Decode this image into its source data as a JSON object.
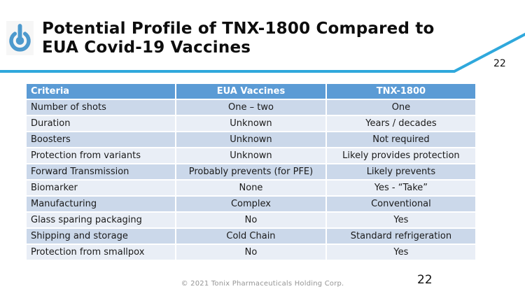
{
  "slide": {
    "title_line1": "Potential Profile of TNX-1800 Compared to",
    "title_line2": "EUA Covid-19 Vaccines",
    "page_number_top": "22",
    "page_number_bottom": "22",
    "footer_copyright": "© 2021 Tonix Pharmaceuticals Holding Corp."
  },
  "logo": {
    "icon": "power-thermometer-icon"
  },
  "table": {
    "headers": [
      "Criteria",
      "EUA Vaccines",
      "TNX-1800"
    ],
    "rows": [
      [
        "Number of shots",
        "One – two",
        "One"
      ],
      [
        "Duration",
        "Unknown",
        "Years / decades"
      ],
      [
        "Boosters",
        "Unknown",
        "Not required"
      ],
      [
        "Protection from variants",
        "Unknown",
        "Likely provides protection"
      ],
      [
        "Forward Transmission",
        "Probably prevents (for PFE)",
        "Likely prevents"
      ],
      [
        "Biomarker",
        "None",
        "Yes - “Take”"
      ],
      [
        "Manufacturing",
        "Complex",
        "Conventional"
      ],
      [
        "Glass sparing packaging",
        "No",
        "Yes"
      ],
      [
        "Shipping and storage",
        "Cold Chain",
        "Standard refrigeration"
      ],
      [
        "Protection from smallpox",
        "No",
        "Yes"
      ]
    ]
  },
  "colors": {
    "header_blue": "#5B9BD5",
    "row_odd": "#CBD8EA",
    "row_even": "#E9EEF6",
    "accent_line_blue": "#2FA8DC",
    "logo_blue": "#4D99CD",
    "cell_text": "#1A1A1A",
    "footer_gray": "#959595"
  }
}
